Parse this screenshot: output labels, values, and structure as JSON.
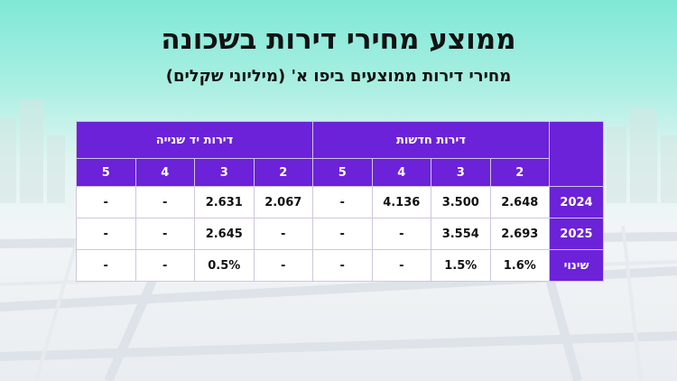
{
  "title": "ממוצע מחירי דירות בשכונה",
  "subtitle": "מחירי דירות ממוצעים ביפו א' (מיליוני שקלים)",
  "chart_data": {
    "type": "table",
    "groups": [
      "דירות חדשות",
      "דירות יד שנייה"
    ],
    "rooms": [
      "2",
      "3",
      "4",
      "5"
    ],
    "rows": [
      {
        "label": "2024",
        "new": [
          "2.648",
          "3.500",
          "4.136",
          "-"
        ],
        "used": [
          "2.067",
          "2.631",
          "-",
          "-"
        ]
      },
      {
        "label": "2025",
        "new": [
          "2.693",
          "3.554",
          "-",
          "-"
        ],
        "used": [
          "-",
          "2.645",
          "-",
          "-"
        ]
      },
      {
        "label": "שינוי",
        "new": [
          "1.6%",
          "1.5%",
          "-",
          "-"
        ],
        "used": [
          "-",
          "0.5%",
          "-",
          "-"
        ]
      }
    ]
  },
  "colors": {
    "header": "#6b22d8",
    "cell_bg": "#ffffff",
    "accent_bg": "#7fe8d6"
  }
}
